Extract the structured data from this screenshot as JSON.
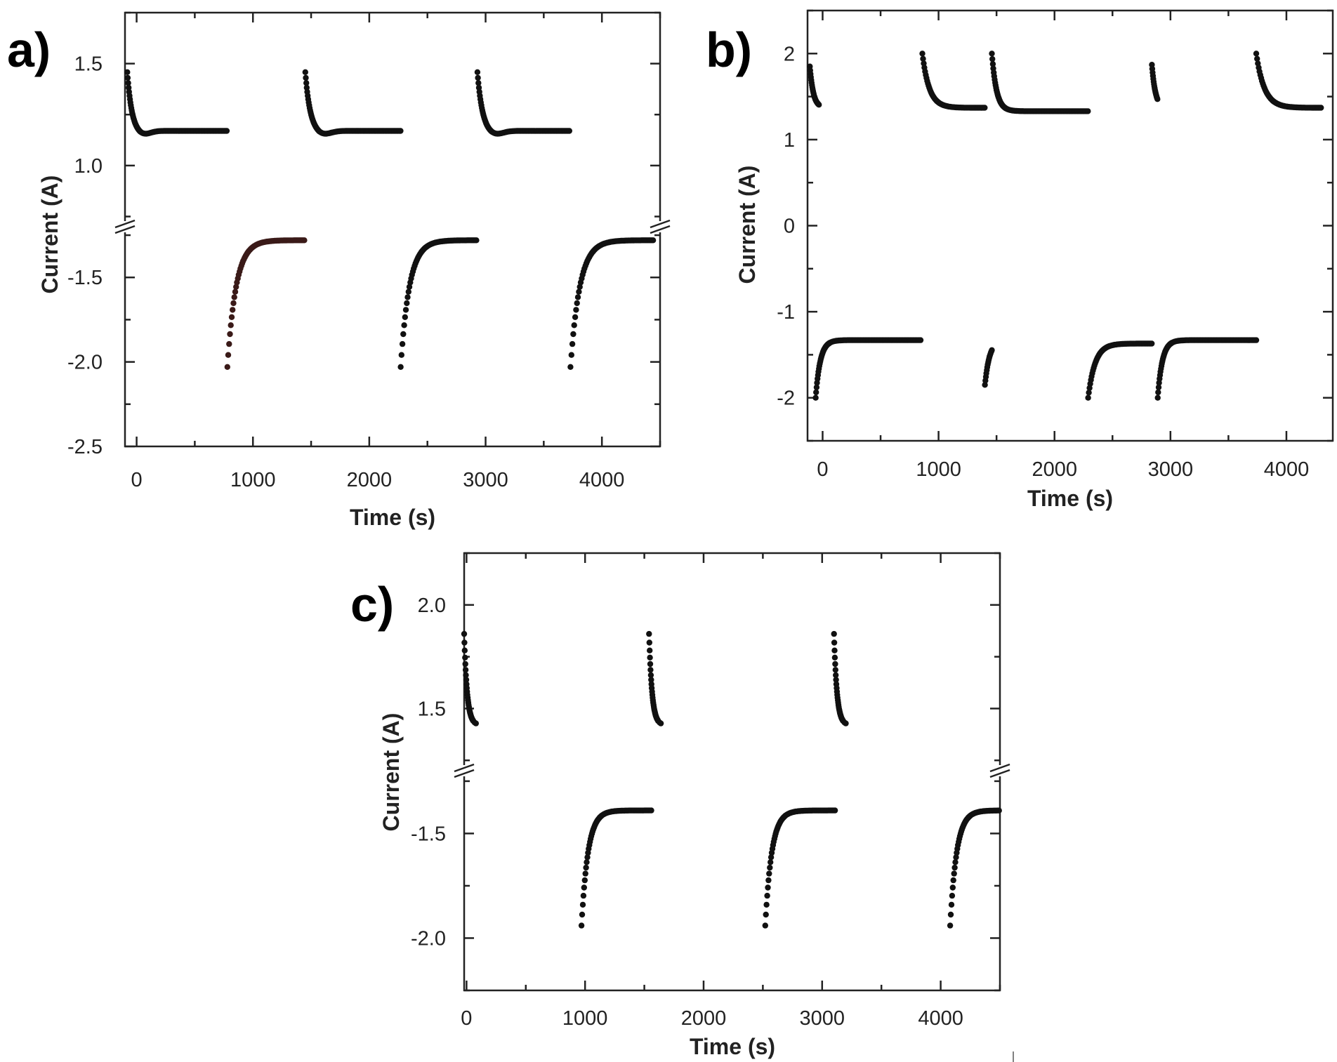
{
  "colors": {
    "points": "#111111",
    "accent_points": "#3a1a18",
    "axes": "#222222"
  },
  "chart_data": [
    {
      "type": "scatter",
      "panel_label": "a)",
      "xlabel": "Time (s)",
      "ylabel": "Current (A)",
      "xlim": [
        -100,
        4500
      ],
      "x_ticks": [
        0,
        1000,
        2000,
        3000,
        4000
      ],
      "broken_axis": true,
      "segments": [
        {
          "ylim": [
            0.7,
            1.75
          ],
          "ticks": [
            1.0,
            1.5
          ],
          "tick_labels": [
            "1.0",
            "1.5"
          ]
        },
        {
          "ylim": [
            -2.5,
            -1.2
          ],
          "ticks": [
            -1.5,
            -2.0,
            -2.5
          ],
          "tick_labels": [
            "-1.5",
            "-2.0",
            "-2.5"
          ]
        }
      ],
      "series": [
        {
          "kind": "pos",
          "x0": -80,
          "x1": 780,
          "y0": 1.46,
          "y1": 1.17,
          "tau": 38,
          "dip": 0.02,
          "segment": 0
        },
        {
          "kind": "pos",
          "x0": 1450,
          "x1": 2270,
          "y0": 1.46,
          "y1": 1.17,
          "tau": 42,
          "dip": 0.02,
          "segment": 0
        },
        {
          "kind": "pos",
          "x0": 2930,
          "x1": 3730,
          "y0": 1.46,
          "y1": 1.17,
          "tau": 42,
          "dip": 0.02,
          "segment": 0
        },
        {
          "kind": "neg",
          "x0": 780,
          "x1": 1450,
          "y0": -2.03,
          "y1": -1.28,
          "tau": 75,
          "segment": 1,
          "accent": true
        },
        {
          "kind": "neg",
          "x0": 2270,
          "x1": 2930,
          "y0": -2.03,
          "y1": -1.28,
          "tau": 75,
          "segment": 1
        },
        {
          "kind": "neg",
          "x0": 3730,
          "x1": 4450,
          "y0": -2.03,
          "y1": -1.28,
          "tau": 80,
          "segment": 1
        }
      ]
    },
    {
      "type": "scatter",
      "panel_label": "b)",
      "xlabel": "Time (s)",
      "ylabel": "Current (A)",
      "xlim": [
        -130,
        4400
      ],
      "x_ticks": [
        0,
        1000,
        2000,
        3000,
        4000
      ],
      "broken_axis": false,
      "segments": [
        {
          "ylim": [
            -2.5,
            2.5
          ],
          "ticks": [
            2,
            1,
            0,
            -1,
            -2
          ],
          "tick_labels": [
            "2",
            "1",
            "0",
            "-1",
            "-2"
          ]
        }
      ],
      "series": [
        {
          "kind": "pos",
          "x0": -110,
          "x1": -30,
          "y0": 1.85,
          "y1": 1.37,
          "tau": 30,
          "segment": 0
        },
        {
          "kind": "pos",
          "x0": 860,
          "x1": 1400,
          "y0": 2.0,
          "y1": 1.37,
          "tau": 60,
          "segment": 0
        },
        {
          "kind": "pos",
          "x0": 1460,
          "x1": 2290,
          "y0": 2.0,
          "y1": 1.33,
          "tau": 40,
          "segment": 0
        },
        {
          "kind": "pos",
          "x0": 2840,
          "x1": 2890,
          "y0": 1.87,
          "y1": 1.37,
          "tau": 30,
          "segment": 0
        },
        {
          "kind": "pos",
          "x0": 3740,
          "x1": 4300,
          "y0": 2.0,
          "y1": 1.37,
          "tau": 70,
          "segment": 0
        },
        {
          "kind": "neg",
          "x0": -60,
          "x1": 850,
          "y0": -2.0,
          "y1": -1.33,
          "tau": 40,
          "segment": 0
        },
        {
          "kind": "neg",
          "x0": 1400,
          "x1": 1460,
          "y0": -1.85,
          "y1": -1.33,
          "tau": 40,
          "segment": 0
        },
        {
          "kind": "neg",
          "x0": 2290,
          "x1": 2840,
          "y0": -2.0,
          "y1": -1.37,
          "tau": 60,
          "segment": 0
        },
        {
          "kind": "neg",
          "x0": 2890,
          "x1": 3740,
          "y0": -2.0,
          "y1": -1.33,
          "tau": 40,
          "segment": 0
        }
      ]
    },
    {
      "type": "scatter",
      "panel_label": "c)",
      "xlabel": "Time (s)",
      "ylabel": "Current (A)",
      "xlim": [
        -20,
        4500
      ],
      "x_ticks": [
        0,
        1000,
        2000,
        3000,
        4000
      ],
      "broken_axis": true,
      "segments": [
        {
          "ylim": [
            1.2,
            2.25
          ],
          "ticks": [
            2.0,
            1.5
          ],
          "tick_labels": [
            "2.0",
            "1.5"
          ]
        },
        {
          "ylim": [
            -2.25,
            -1.2
          ],
          "ticks": [
            -1.5,
            -2.0
          ],
          "tick_labels": [
            "-1.5",
            "-2.0"
          ]
        }
      ],
      "series": [
        {
          "kind": "pos",
          "x0": -20,
          "x1": 80,
          "y0": 1.86,
          "y1": 1.42,
          "tau": 25,
          "segment": 0
        },
        {
          "kind": "pos",
          "x0": 1540,
          "x1": 1640,
          "y0": 1.86,
          "y1": 1.42,
          "tau": 25,
          "segment": 0
        },
        {
          "kind": "pos",
          "x0": 3100,
          "x1": 3200,
          "y0": 1.86,
          "y1": 1.42,
          "tau": 25,
          "segment": 0
        },
        {
          "kind": "neg",
          "x0": 970,
          "x1": 1560,
          "y0": -1.94,
          "y1": -1.39,
          "tau": 55,
          "segment": 1
        },
        {
          "kind": "neg",
          "x0": 2520,
          "x1": 3110,
          "y0": -1.94,
          "y1": -1.39,
          "tau": 55,
          "segment": 1
        },
        {
          "kind": "neg",
          "x0": 4080,
          "x1": 4500,
          "y0": -1.94,
          "y1": -1.39,
          "tau": 55,
          "segment": 1
        }
      ]
    }
  ]
}
